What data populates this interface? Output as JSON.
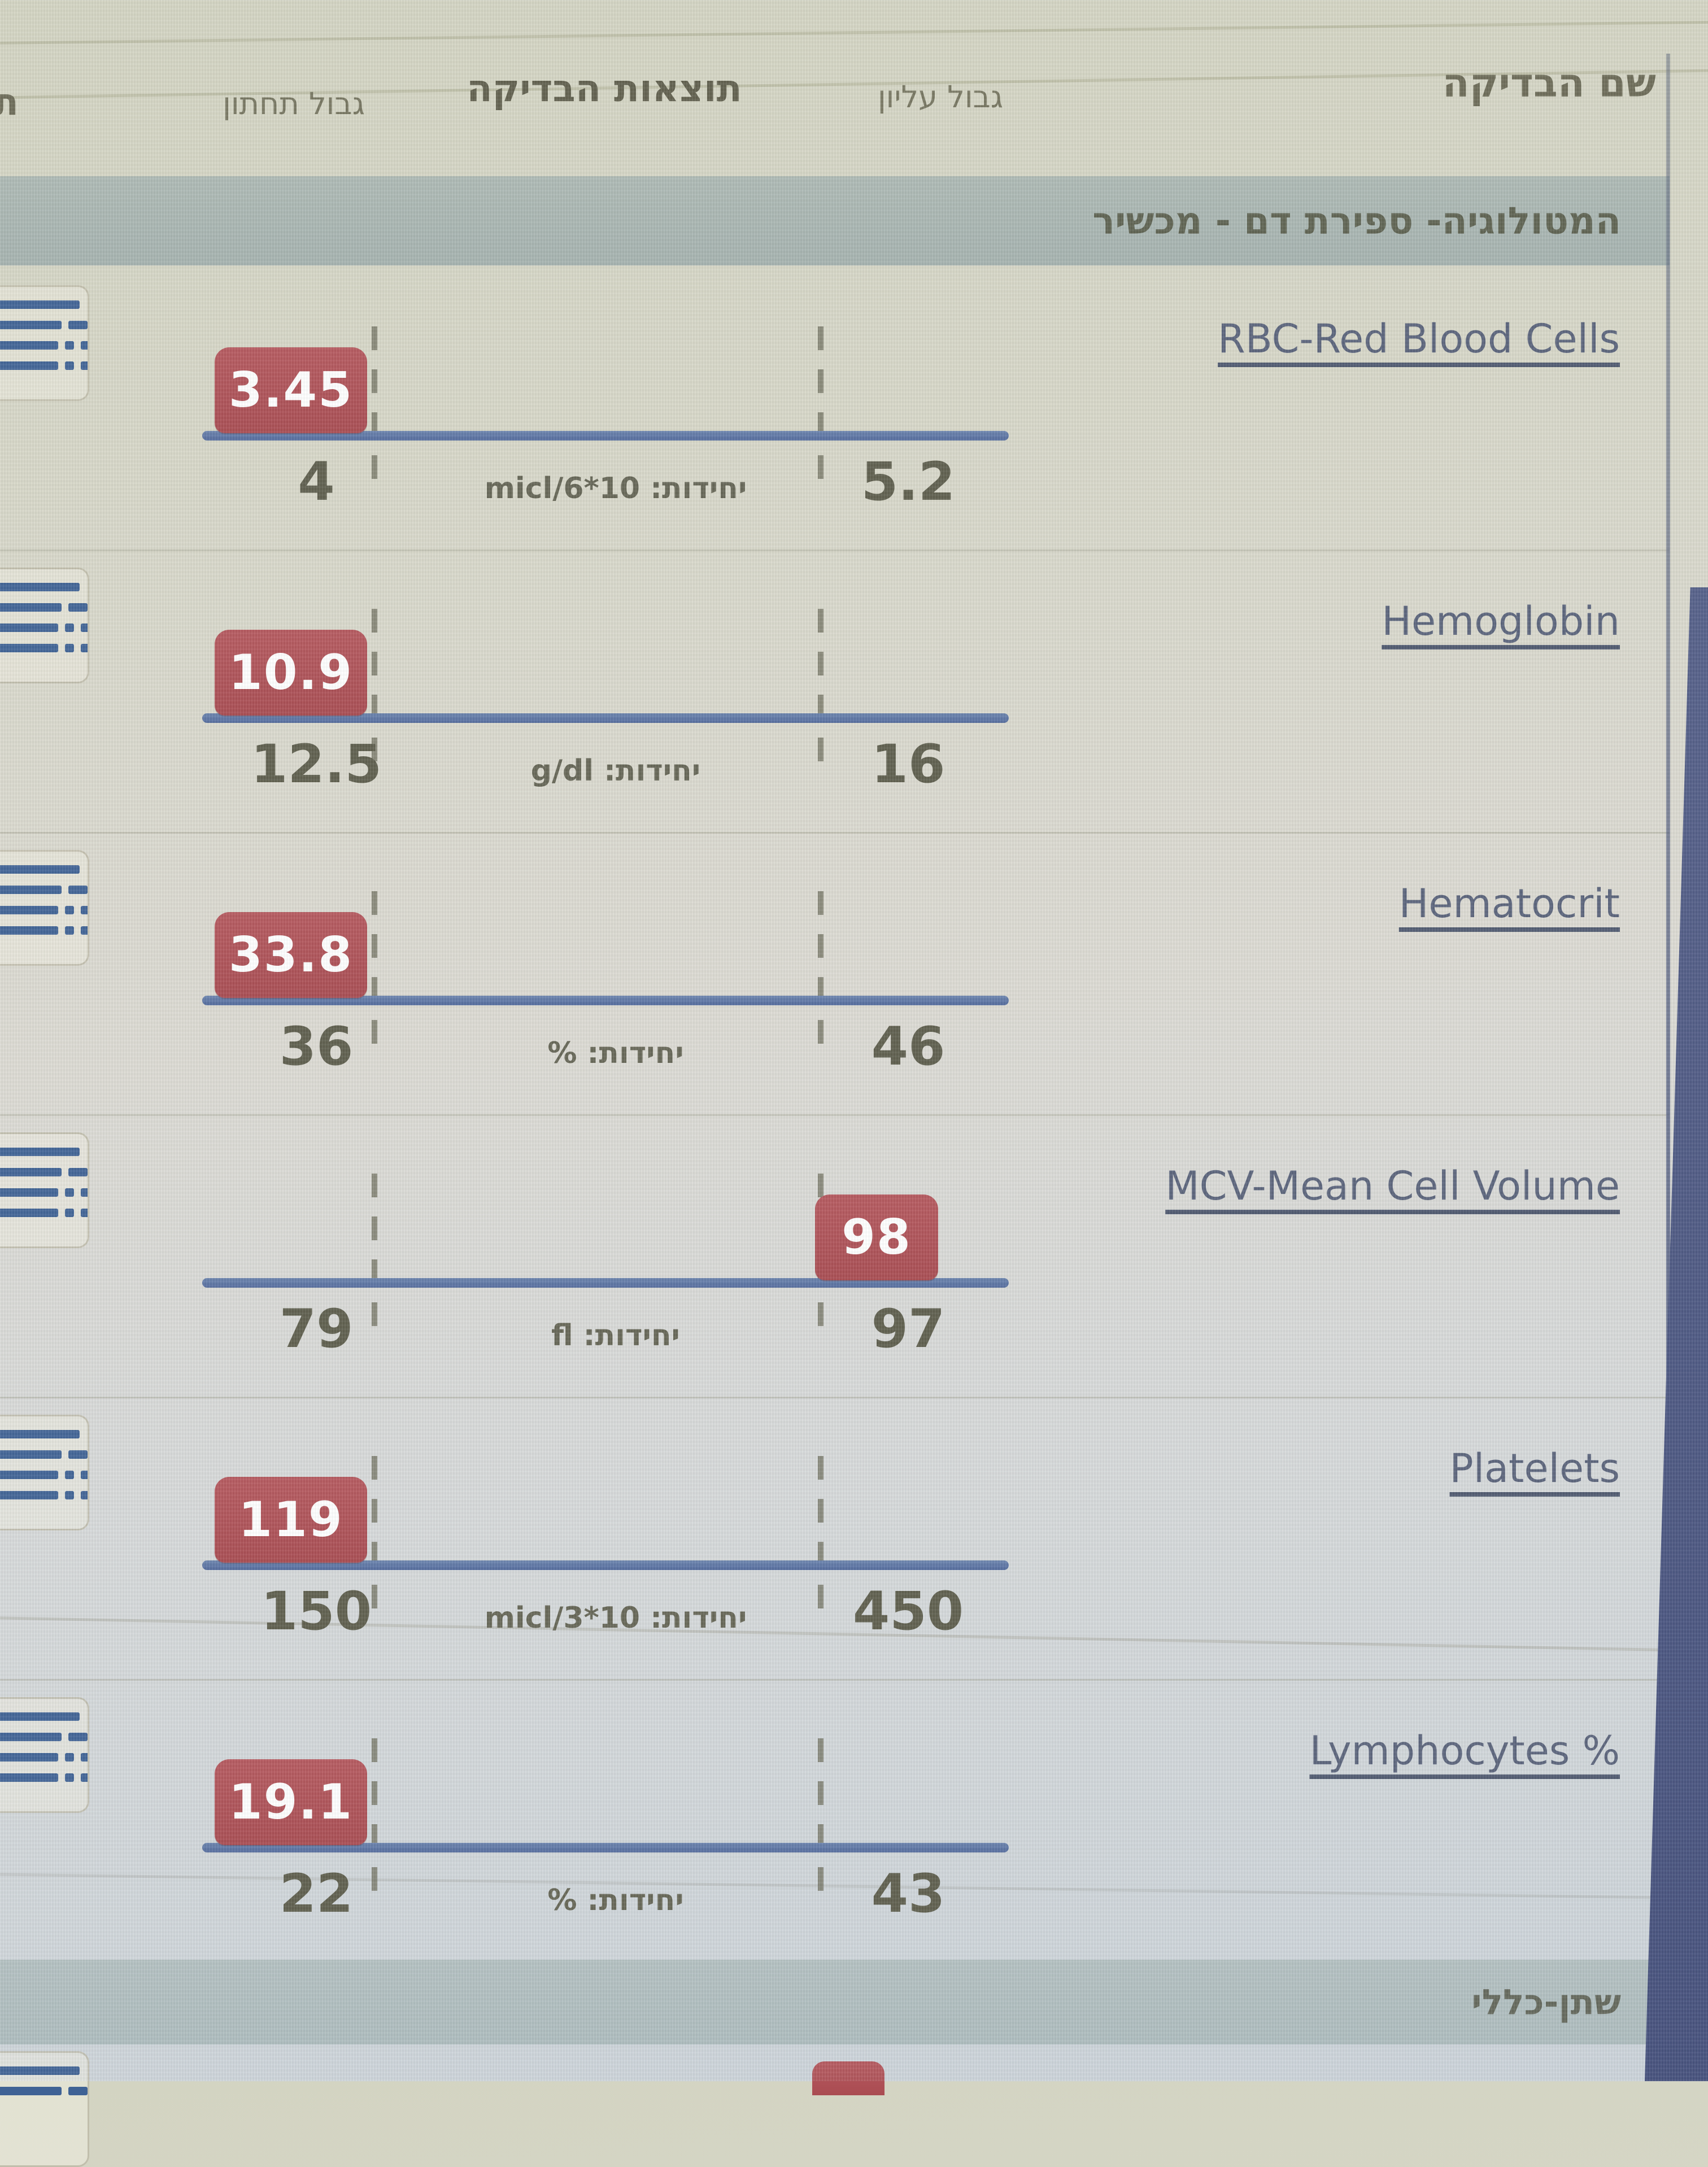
{
  "header": {
    "columns": {
      "test_name": "שם הבדיקה",
      "upper_limit": "גבול עליון",
      "results": "תוצאות הבדיקה",
      "lower_limit": "גבול תחתון",
      "clipped_left_column": "ת"
    }
  },
  "sections": {
    "hematology": {
      "title": "המטולוגיה- ספירת דם - מכשיר"
    },
    "urine": {
      "title": "שתן-כללי"
    }
  },
  "tests": [
    {
      "name": "RBC-Red Blood Cells",
      "result": "3.45",
      "lower": "4",
      "upper": "5.2",
      "units": "יחידות: micl/6*10",
      "flag": "below-lower-limit"
    },
    {
      "name": "Hemoglobin",
      "result": "10.9",
      "lower": "12.5",
      "upper": "16",
      "units": "יחידות: g/dl",
      "flag": "below-lower-limit"
    },
    {
      "name": "Hematocrit",
      "result": "33.8",
      "lower": "36",
      "upper": "46",
      "units": "יחידות: %",
      "flag": "below-lower-limit"
    },
    {
      "name": "MCV-Mean Cell Volume",
      "result": "98",
      "lower": "79",
      "upper": "97",
      "units": "יחידות: fl",
      "flag": "above-upper-limit"
    },
    {
      "name": "Platelets",
      "result": "119",
      "lower": "150",
      "upper": "450",
      "units": "יחידות: micl/3*10",
      "flag": "below-lower-limit"
    },
    {
      "name": "Lymphocytes %",
      "result": "19.1",
      "lower": "22",
      "upper": "43",
      "units": "יחידות: %",
      "flag": "below-lower-limit"
    }
  ],
  "icons": {
    "row_action": "list-icon"
  },
  "colors": {
    "result_badge_red": "#b05056",
    "range_line_blue": "#5874a6",
    "section_band": "#a9b6b1",
    "link_blue_grey": "#59627a",
    "page_background": "#d6d7c9",
    "right_border_navy": "#46527e"
  }
}
